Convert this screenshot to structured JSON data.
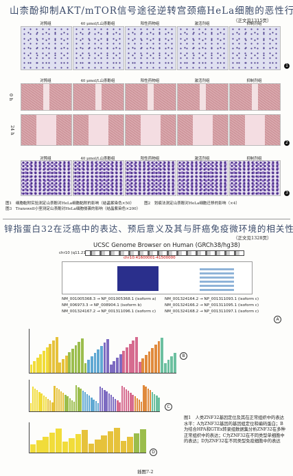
{
  "header1": {
    "title": "山柰酚抑制AKT/mTOR信号途径逆转宫颈癌HeLa细胞的恶性行为",
    "page_ref": "（正文见1315页）"
  },
  "figure_a": {
    "column_labels": [
      "对照组",
      "40 μmol/L山柰酚组",
      "阳性药物组",
      "激活剂组",
      "抑制剂组"
    ],
    "row_labels": [
      "0 h",
      "24 h"
    ],
    "panel_numbers": [
      "1",
      "2",
      "3"
    ],
    "captions": [
      "图1　细胞黏附实验测定山柰酚对HeLa细胞黏附的影响（结晶紫染色×50）",
      "图2　划痕法测定山柰酚对HeLa细胞迁移的影响（×4）",
      "图3　Transwell小室测定山柰酚对HeLa细胞侵袭的影响（结晶紫染色×200）"
    ]
  },
  "header2": {
    "title": "锌指蛋白32在泛癌中的表达、预后意义及其与肝癌免疫微环境的相关性",
    "page_ref": "（正文见1328页）"
  },
  "figure_b": {
    "browser_title": "UCSC Genome Browser on Human (GRCh38/hg38)",
    "chromosome": "chr10 (q11.21)",
    "position": "chr10:41600001-41500000",
    "transcripts": [
      "NM_001005368.3 → NP_001005368.1 (isoform a)",
      "NM_001324164.2 → NP_001311093.1 (isoform c)",
      "NM_006973.3 → NP_008904.1 (isoform b)",
      "NM_001324166.2 → NP_001311095.1 (isoform c)",
      "NM_001324167.2 → NP_001311096.1 (isoform c)",
      "NM_001324168.2 → NP_001311097.1 (isoform c)"
    ],
    "panel_labels": [
      "A",
      "B",
      "C",
      "D"
    ],
    "caption": "图1　人类ZNF32基因定位及其在正常组织中的表达水平：A为ZNF32基因的基因组定位和编码蛋白；B为结合HPA和GTEx转录组数据集分析ZNF32在多种正常组织中的表达；C为ZNF32在不同类型单细胞中的表达；D为ZNF32在不同类型免疫细胞中的表达",
    "plate": "插图7-2"
  }
}
